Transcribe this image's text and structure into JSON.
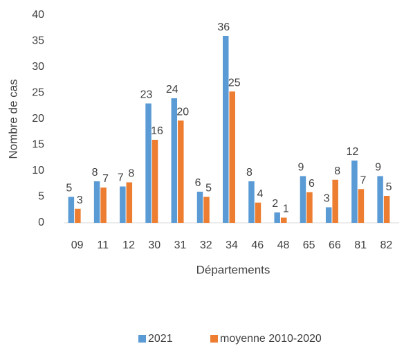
{
  "chart_data": {
    "type": "bar",
    "x_label": "Départements",
    "y_label": "Nombre de cas",
    "categories": [
      "09",
      "11",
      "12",
      "30",
      "31",
      "32",
      "34",
      "46",
      "48",
      "65",
      "66",
      "81",
      "82"
    ],
    "series": [
      {
        "name": "2021",
        "color": "#5b9bd5",
        "values": [
          5,
          8,
          7,
          23,
          24,
          6,
          36,
          8,
          2,
          9,
          3,
          12,
          9
        ]
      },
      {
        "name": "moyenne 2010-2020",
        "color": "#ed7d31",
        "values": [
          2.7,
          6.8,
          7.8,
          16,
          19.7,
          5,
          25.3,
          3.9,
          1,
          5.9,
          8.3,
          6.5,
          5.2
        ],
        "value_labels": [
          "3",
          "7",
          "8",
          "16",
          "20",
          "5",
          "25",
          "4",
          "1",
          "6",
          "8",
          "7",
          "5"
        ]
      }
    ],
    "ylim": [
      0,
      40
    ],
    "yticks": [
      0,
      5,
      10,
      15,
      20,
      25,
      30,
      35,
      40
    ],
    "grid": false,
    "legend": "bottom"
  }
}
